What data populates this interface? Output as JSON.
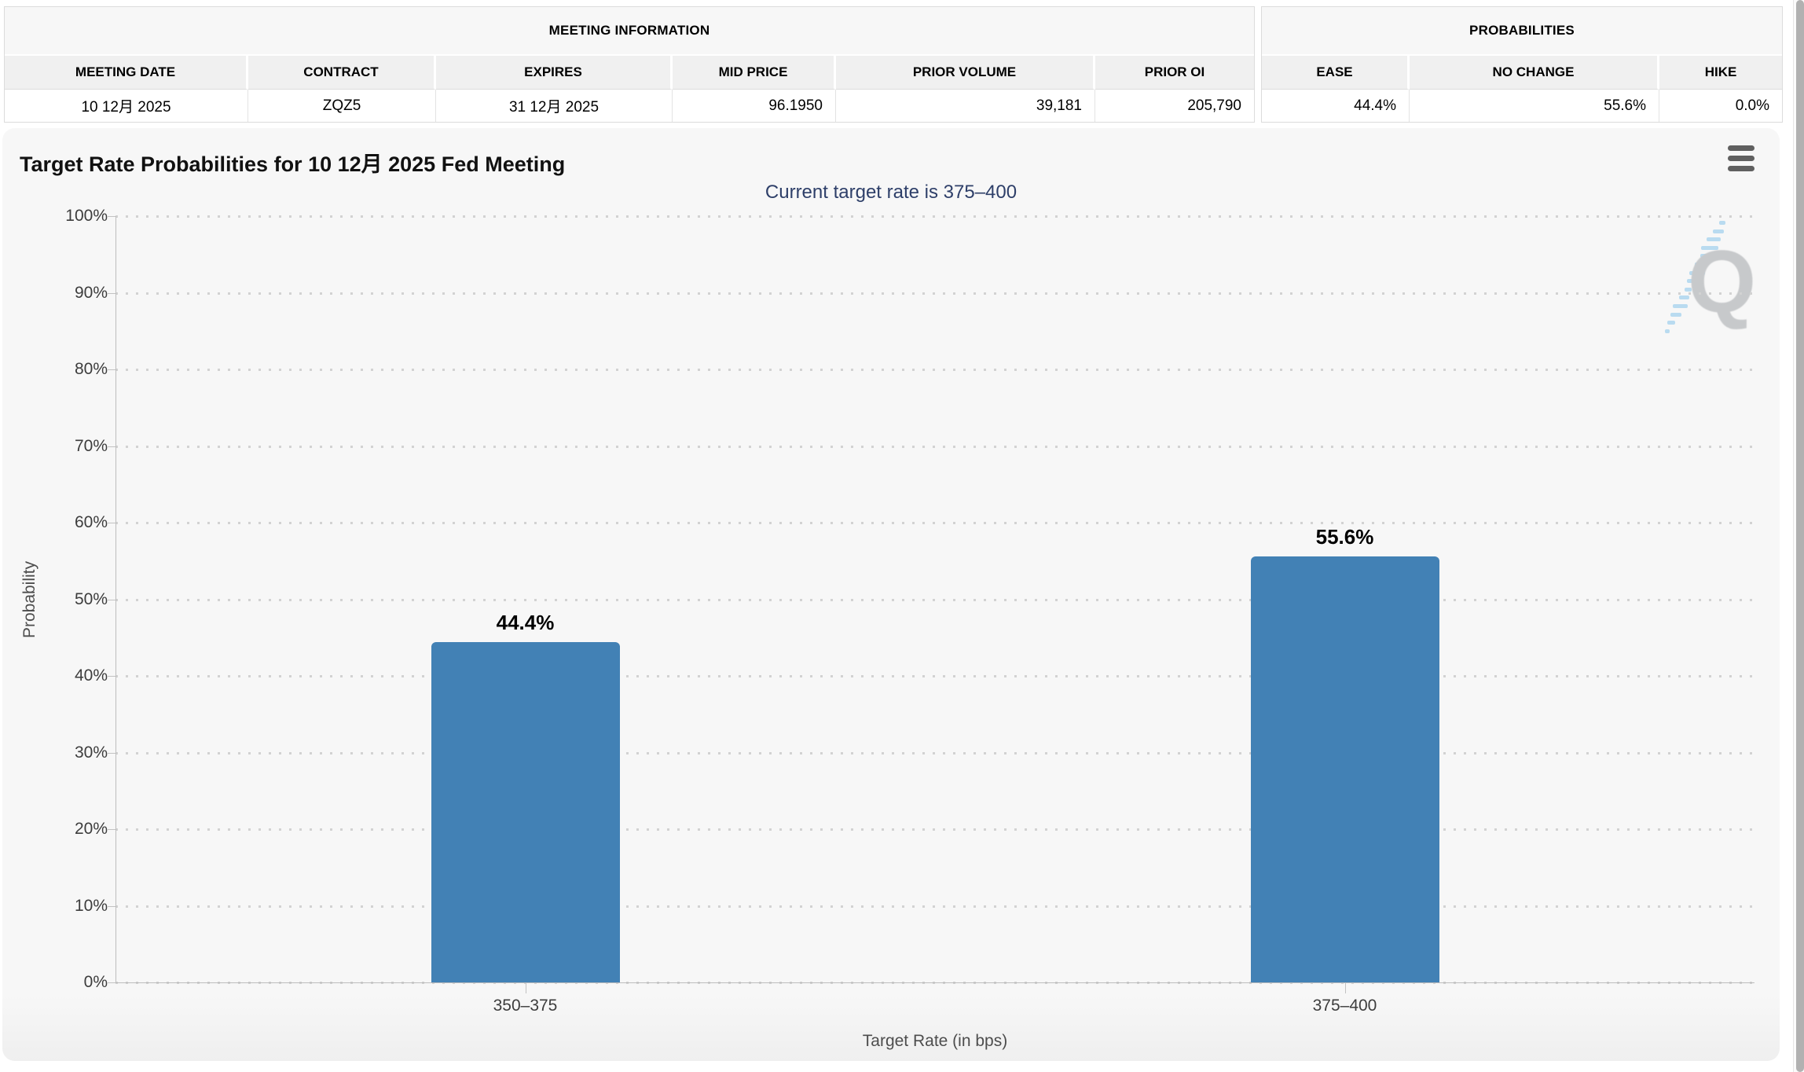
{
  "meeting_info": {
    "title": "MEETING INFORMATION",
    "columns": [
      "MEETING DATE",
      "CONTRACT",
      "EXPIRES",
      "MID PRICE",
      "PRIOR VOLUME",
      "PRIOR OI"
    ],
    "row": {
      "meeting_date": "10 12月 2025",
      "contract": "ZQZ5",
      "expires": "31 12月 2025",
      "mid_price": "96.1950",
      "prior_volume": "39,181",
      "prior_oi": "205,790"
    }
  },
  "probabilities": {
    "title": "PROBABILITIES",
    "columns": [
      "EASE",
      "NO CHANGE",
      "HIKE"
    ],
    "row": {
      "ease": "44.4%",
      "no_change": "55.6%",
      "hike": "0.0%"
    }
  },
  "chart_data": {
    "type": "bar",
    "title": "Target Rate Probabilities for 10 12月 2025 Fed Meeting",
    "subtitle": "Current target rate is 375–400",
    "categories": [
      "350–375",
      "375–400"
    ],
    "values": [
      44.4,
      55.6
    ],
    "data_labels": [
      "44.4%",
      "55.6%"
    ],
    "xlabel": "Target Rate (in bps)",
    "ylabel": "Probability",
    "ylim": [
      0,
      100
    ],
    "ytick_labels": [
      "0%",
      "10%",
      "20%",
      "30%",
      "40%",
      "50%",
      "60%",
      "70%",
      "80%",
      "90%",
      "100%"
    ],
    "grid": "dotted-horizontal",
    "legend": "none",
    "bar_color": "#4281b5",
    "watermark_letter": "Q"
  },
  "icons": {
    "context_menu": "hamburger-icon"
  }
}
